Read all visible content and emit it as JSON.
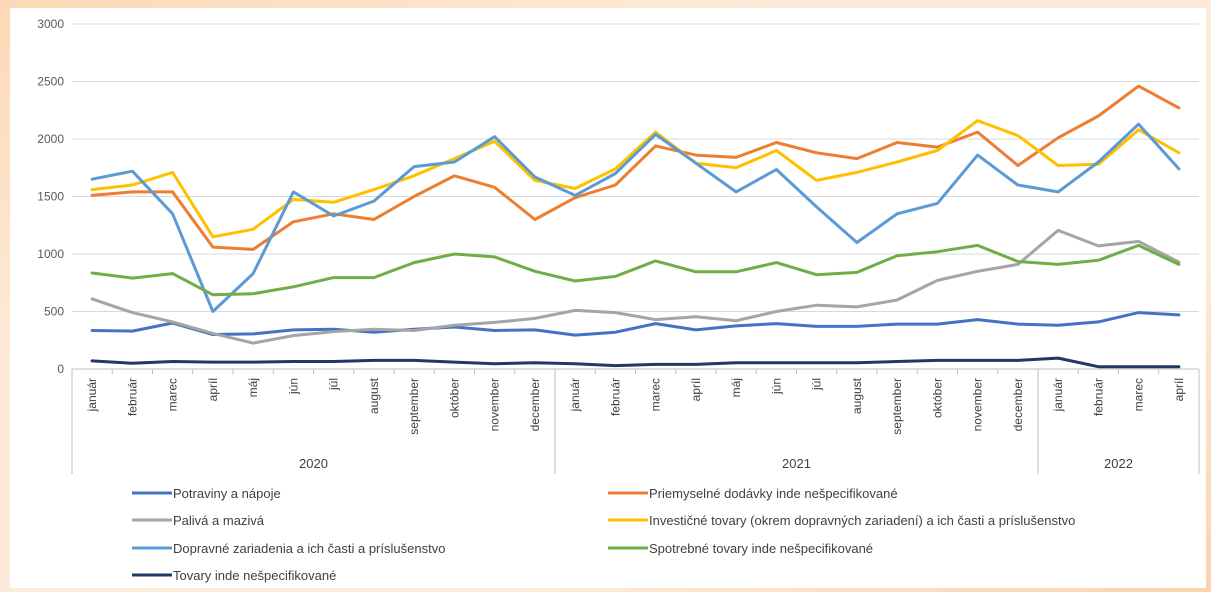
{
  "chart_data": {
    "type": "line",
    "title": "",
    "xlabel": "",
    "ylabel": "",
    "ylim": [
      0,
      3000
    ],
    "yticks": [
      0,
      500,
      1000,
      1500,
      2000,
      2500,
      3000
    ],
    "grid": true,
    "legend_position": "bottom",
    "categories": [
      "január",
      "február",
      "marec",
      "apríl",
      "máj",
      "jún",
      "júl",
      "august",
      "september",
      "október",
      "november",
      "december",
      "január",
      "február",
      "marec",
      "apríl",
      "máj",
      "jún",
      "júl",
      "august",
      "september",
      "október",
      "november",
      "december",
      "január",
      "február",
      "marec",
      "apríl"
    ],
    "year_groups": [
      {
        "label": "2020",
        "start": 0,
        "end": 11
      },
      {
        "label": "2021",
        "start": 12,
        "end": 23
      },
      {
        "label": "2022",
        "start": 24,
        "end": 27
      }
    ],
    "series": [
      {
        "name": "Potraviny a nápoje",
        "color": "#4472c4",
        "values": [
          335,
          330,
          400,
          300,
          305,
          340,
          345,
          320,
          345,
          365,
          335,
          340,
          295,
          320,
          395,
          340,
          375,
          395,
          370,
          370,
          390,
          390,
          430,
          390,
          380,
          410,
          490,
          470
        ]
      },
      {
        "name": "Priemyselné dodávky inde nešpecifikované",
        "color": "#ed7d31",
        "values": [
          1510,
          1540,
          1540,
          1060,
          1040,
          1280,
          1350,
          1300,
          1500,
          1680,
          1580,
          1300,
          1490,
          1600,
          1940,
          1860,
          1840,
          1970,
          1880,
          1830,
          1970,
          1930,
          2060,
          1770,
          2010,
          2200,
          2460,
          2270
        ]
      },
      {
        "name": "Palivá a mazivá",
        "color": "#a5a5a5",
        "values": [
          610,
          490,
          410,
          310,
          225,
          290,
          325,
          345,
          335,
          380,
          405,
          440,
          510,
          490,
          430,
          455,
          420,
          500,
          555,
          540,
          600,
          770,
          850,
          910,
          1205,
          1070,
          1110,
          930
        ]
      },
      {
        "name": "Investičné tovary (okrem dopravných zariadení) a ich časti a príslušenstvo",
        "color": "#ffc000",
        "values": [
          1560,
          1600,
          1710,
          1150,
          1215,
          1475,
          1450,
          1560,
          1680,
          1830,
          1980,
          1640,
          1570,
          1740,
          2060,
          1790,
          1750,
          1900,
          1640,
          1710,
          1800,
          1900,
          2160,
          2030,
          1770,
          1780,
          2080,
          1880
        ]
      },
      {
        "name": "Dopravné zariadenia a ich časti a príslušenstvo",
        "color": "#5b9bd5",
        "values": [
          1650,
          1720,
          1350,
          500,
          830,
          1540,
          1330,
          1460,
          1760,
          1800,
          2020,
          1670,
          1510,
          1700,
          2040,
          1790,
          1540,
          1735,
          1410,
          1100,
          1350,
          1440,
          1860,
          1600,
          1540,
          1800,
          2130,
          1740
        ]
      },
      {
        "name": "Spotrebné tovary inde nešpecifikované",
        "color": "#70ad47",
        "values": [
          835,
          790,
          830,
          645,
          655,
          715,
          795,
          795,
          925,
          1000,
          975,
          850,
          765,
          805,
          940,
          845,
          845,
          925,
          820,
          840,
          985,
          1020,
          1075,
          935,
          910,
          945,
          1075,
          910
        ]
      },
      {
        "name": "Tovary inde nešpecifikované",
        "color": "#203864",
        "values": [
          70,
          50,
          65,
          60,
          60,
          65,
          65,
          75,
          75,
          60,
          45,
          55,
          45,
          30,
          40,
          40,
          55,
          55,
          55,
          55,
          65,
          75,
          75,
          75,
          95,
          20,
          20,
          20
        ]
      }
    ]
  }
}
